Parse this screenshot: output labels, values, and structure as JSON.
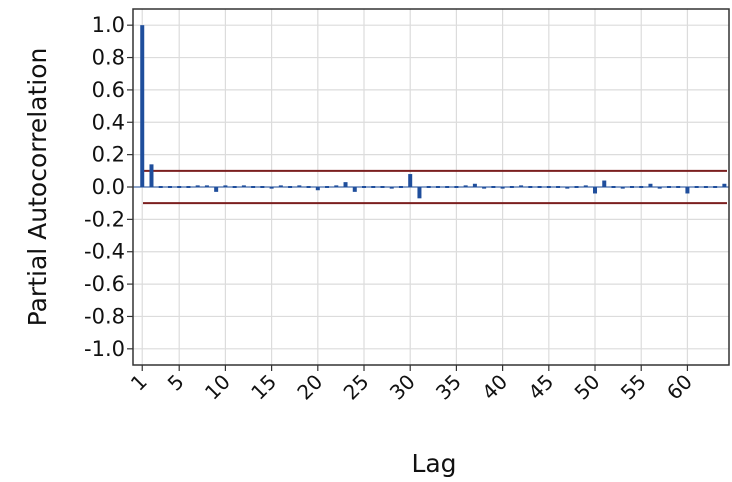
{
  "chart_data": {
    "type": "bar",
    "title": "",
    "xlabel": "Lag",
    "ylabel": "Partial Autocorrelation",
    "ylim": [
      -1.1,
      1.1
    ],
    "xlim": [
      0,
      64.5
    ],
    "y_ticks": [
      "1.0",
      "0.8",
      "0.6",
      "0.4",
      "0.2",
      "0.0",
      "-0.2",
      "-0.4",
      "-0.6",
      "-0.8",
      "-1.0"
    ],
    "y_tick_values": [
      1.0,
      0.8,
      0.6,
      0.4,
      0.2,
      0.0,
      -0.2,
      -0.4,
      -0.6,
      -0.8,
      -1.0
    ],
    "x_ticks": [
      "1",
      "5",
      "10",
      "15",
      "20",
      "25",
      "30",
      "35",
      "40",
      "45",
      "50",
      "55",
      "60"
    ],
    "x_tick_values": [
      1,
      5,
      10,
      15,
      20,
      25,
      30,
      35,
      40,
      45,
      50,
      55,
      60
    ],
    "grid": true,
    "confidence_bounds": {
      "upper": 0.1,
      "lower": -0.1,
      "color": "#7b1f1f"
    },
    "bar_color": "#1f4e9c",
    "series": [
      {
        "lags": [
          1,
          2,
          3,
          4,
          5,
          6,
          7,
          8,
          9,
          10,
          11,
          12,
          13,
          14,
          15,
          16,
          17,
          18,
          19,
          20,
          21,
          22,
          23,
          24,
          25,
          26,
          27,
          28,
          29,
          30,
          31,
          32,
          33,
          34,
          35,
          36,
          37,
          38,
          39,
          40,
          41,
          42,
          43,
          44,
          45,
          46,
          47,
          48,
          49,
          50,
          51,
          52,
          53,
          54,
          55,
          56,
          57,
          58,
          59,
          60,
          61,
          62,
          63,
          64
        ],
        "values": [
          1.0,
          0.14,
          0.0,
          0.0,
          0.0,
          0.0,
          0.01,
          0.01,
          -0.03,
          0.01,
          0.0,
          0.01,
          0.0,
          0.0,
          -0.01,
          0.01,
          0.0,
          0.01,
          0.0,
          -0.02,
          0.0,
          0.01,
          0.03,
          -0.03,
          0.0,
          0.0,
          0.0,
          -0.01,
          0.0,
          0.08,
          -0.07,
          0.0,
          0.0,
          0.0,
          0.0,
          0.01,
          0.02,
          -0.01,
          0.0,
          -0.01,
          0.0,
          0.01,
          0.0,
          0.0,
          0.0,
          0.0,
          -0.01,
          0.0,
          0.01,
          -0.04,
          0.04,
          0.0,
          -0.01,
          0.0,
          0.0,
          0.02,
          -0.01,
          0.0,
          0.0,
          -0.04,
          0.0,
          0.0,
          0.0,
          0.02
        ]
      }
    ]
  }
}
